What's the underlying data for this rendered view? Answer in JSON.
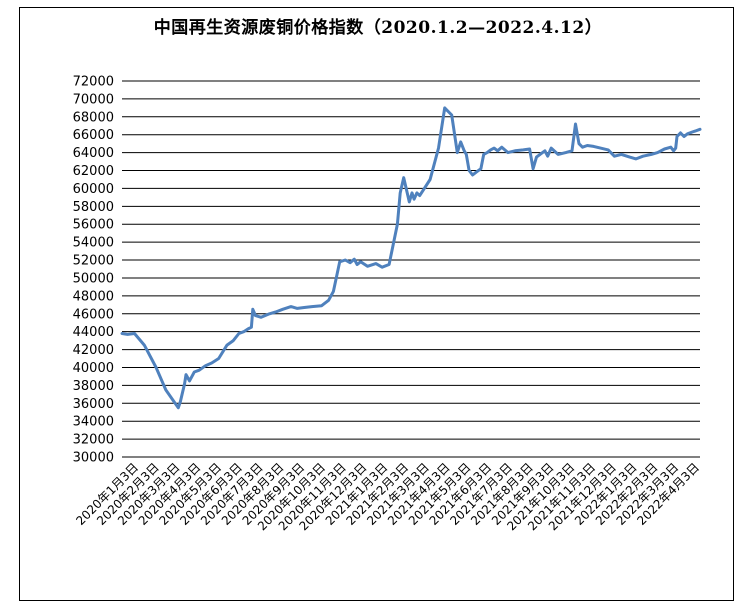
{
  "chart_data": {
    "type": "line",
    "title": "中国再生资源废铜价格指数（2020.1.2—2022.4.12）",
    "xlabel": "",
    "ylabel": "",
    "ylim": [
      30000,
      72000
    ],
    "y_ticks": [
      30000,
      32000,
      34000,
      36000,
      38000,
      40000,
      42000,
      44000,
      46000,
      48000,
      50000,
      52000,
      54000,
      56000,
      58000,
      60000,
      62000,
      64000,
      66000,
      68000,
      70000,
      72000
    ],
    "x_tick_labels": [
      "2020年1月3日",
      "2020年2月3日",
      "2020年3月3日",
      "2020年4月3日",
      "2020年5月3日",
      "2020年6月3日",
      "2020年7月3日",
      "2020年8月3日",
      "2020年9月3日",
      "2020年10月3日",
      "2020年11月3日",
      "2020年12月3日",
      "2021年1月3日",
      "2021年2月3日",
      "2021年3月3日",
      "2021年4月3日",
      "2021年5月3日",
      "2021年6月3日",
      "2021年7月3日",
      "2021年8月3日",
      "2021年9月3日",
      "2021年10月3日",
      "2021年11月3日",
      "2021年12月3日",
      "2022年1月3日",
      "2022年2月3日",
      "2022年3月3日",
      "2022年4月3日"
    ],
    "grid": true,
    "legend": "none",
    "line_color": "#4f81bd",
    "series": [
      {
        "x": [
          "2020-01-02",
          "2020-01-10",
          "2020-01-20",
          "2020-02-03",
          "2020-02-20",
          "2020-03-05",
          "2020-03-23",
          "2020-03-26",
          "2020-04-01",
          "2020-04-03",
          "2020-04-08",
          "2020-04-15",
          "2020-04-22",
          "2020-05-01",
          "2020-05-10",
          "2020-05-20",
          "2020-06-01",
          "2020-06-10",
          "2020-06-18",
          "2020-06-25",
          "2020-07-01",
          "2020-07-06",
          "2020-07-08",
          "2020-07-12",
          "2020-07-20",
          "2020-08-01",
          "2020-08-10",
          "2020-08-20",
          "2020-09-01",
          "2020-09-10",
          "2020-09-20",
          "2020-10-01",
          "2020-10-15",
          "2020-10-25",
          "2020-11-01",
          "2020-11-10",
          "2020-11-18",
          "2020-11-25",
          "2020-12-01",
          "2020-12-05",
          "2020-12-10",
          "2020-12-20",
          "2021-01-01",
          "2021-01-10",
          "2021-01-20",
          "2021-02-01",
          "2021-02-05",
          "2021-02-10",
          "2021-02-18",
          "2021-02-22",
          "2021-02-25",
          "2021-03-01",
          "2021-03-05",
          "2021-03-10",
          "2021-03-20",
          "2021-04-01",
          "2021-04-10",
          "2021-04-20",
          "2021-04-28",
          "2021-05-03",
          "2021-05-08",
          "2021-05-11",
          "2021-05-15",
          "2021-05-20",
          "2021-05-25",
          "2021-06-01",
          "2021-06-05",
          "2021-06-10",
          "2021-06-15",
          "2021-06-20",
          "2021-06-25",
          "2021-07-01",
          "2021-07-10",
          "2021-07-20",
          "2021-08-01",
          "2021-08-10",
          "2021-08-15",
          "2021-08-20",
          "2021-08-25",
          "2021-09-01",
          "2021-09-05",
          "2021-09-10",
          "2021-09-20",
          "2021-10-01",
          "2021-10-10",
          "2021-10-15",
          "2021-10-20",
          "2021-10-25",
          "2021-11-01",
          "2021-11-10",
          "2021-11-20",
          "2021-12-01",
          "2021-12-10",
          "2021-12-20",
          "2022-01-01",
          "2022-01-10",
          "2022-01-20",
          "2022-02-01",
          "2022-02-10",
          "2022-02-20",
          "2022-03-01",
          "2022-03-05",
          "2022-03-08",
          "2022-03-10",
          "2022-03-15",
          "2022-03-20",
          "2022-03-25",
          "2022-04-01",
          "2022-04-05",
          "2022-04-12"
        ],
        "values": [
          43800,
          43700,
          43800,
          42500,
          40000,
          37500,
          35500,
          36200,
          38200,
          39200,
          38500,
          39500,
          39700,
          40200,
          40500,
          41000,
          42500,
          43000,
          43800,
          44000,
          44300,
          44500,
          46500,
          45800,
          45600,
          46000,
          46200,
          46500,
          46800,
          46600,
          46700,
          46800,
          46900,
          47500,
          48500,
          51800,
          52000,
          51700,
          52100,
          51500,
          51800,
          51300,
          51600,
          51200,
          51500,
          56000,
          59500,
          61200,
          58500,
          59500,
          58800,
          59500,
          59200,
          59800,
          61000,
          64500,
          69000,
          68200,
          64000,
          65200,
          64200,
          63800,
          62000,
          61500,
          61800,
          62200,
          63800,
          64000,
          64300,
          64500,
          64200,
          64600,
          64000,
          64200,
          64300,
          64400,
          62200,
          63500,
          63800,
          64200,
          63600,
          64500,
          63800,
          64000,
          64200,
          67200,
          65000,
          64600,
          64800,
          64700,
          64500,
          64300,
          63600,
          63800,
          63500,
          63300,
          63600,
          63800,
          64000,
          64400,
          64600,
          64200,
          64500,
          65800,
          66200,
          65800,
          66100,
          66300,
          66400,
          66600
        ]
      }
    ]
  }
}
